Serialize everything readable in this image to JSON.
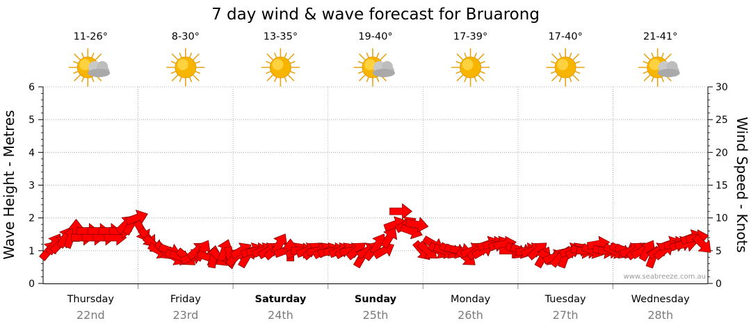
{
  "chart_data": {
    "type": "line",
    "title": "7 day wind & wave forecast for Bruarong",
    "ylabel_left": "Wave Height - Metres",
    "ylabel_right": "Wind Speed - Knots",
    "ylim_left": [
      0,
      6
    ],
    "ylim_right": [
      0,
      30
    ],
    "yticks_left": [
      "0",
      "1",
      "2",
      "3",
      "4",
      "5",
      "6"
    ],
    "yticks_right": [
      "0",
      "5",
      "10",
      "15",
      "20",
      "25",
      "30"
    ],
    "grid": true,
    "days": [
      {
        "name": "Thursday",
        "date": "22nd",
        "temp": "11-26°",
        "icon": "partly-cloudy-icon",
        "bold": false
      },
      {
        "name": "Friday",
        "date": "23rd",
        "temp": "8-30°",
        "icon": "sunny-icon",
        "bold": false
      },
      {
        "name": "Saturday",
        "date": "24th",
        "temp": "13-35°",
        "icon": "sunny-icon",
        "bold": true
      },
      {
        "name": "Sunday",
        "date": "25th",
        "temp": "19-40°",
        "icon": "partly-cloudy-icon",
        "bold": true
      },
      {
        "name": "Monday",
        "date": "26th",
        "temp": "17-39°",
        "icon": "sunny-icon",
        "bold": false
      },
      {
        "name": "Tuesday",
        "date": "27th",
        "temp": "17-40°",
        "icon": "sunny-icon",
        "bold": false
      },
      {
        "name": "Wednesday",
        "date": "28th",
        "temp": "21-41°",
        "icon": "partly-cloudy-icon",
        "bold": false
      }
    ],
    "series": [
      {
        "name": "Wind",
        "color": "#ff0000",
        "points": [
          [
            0,
            5,
            50
          ],
          [
            1,
            6,
            60
          ],
          [
            2,
            6,
            45
          ],
          [
            3,
            7,
            60
          ],
          [
            4,
            7,
            70
          ],
          [
            5,
            8,
            90
          ],
          [
            6,
            7,
            0
          ],
          [
            7,
            8,
            0
          ],
          [
            8,
            7,
            0
          ],
          [
            9,
            8,
            0
          ],
          [
            10,
            7,
            0
          ],
          [
            11,
            8,
            0
          ],
          [
            12,
            7,
            0
          ],
          [
            13,
            8,
            0
          ],
          [
            14,
            9,
            45
          ],
          [
            15,
            9,
            60
          ],
          [
            16,
            10,
            20
          ],
          [
            17,
            8,
            -60
          ],
          [
            18,
            7,
            -50
          ],
          [
            19,
            6,
            -40
          ],
          [
            20,
            5,
            -30
          ],
          [
            21,
            5,
            -45
          ],
          [
            22,
            5,
            -20
          ],
          [
            23,
            4,
            -30
          ],
          [
            24,
            4,
            -20
          ],
          [
            25,
            4,
            -40
          ],
          [
            26,
            4,
            20
          ],
          [
            27,
            5,
            40
          ],
          [
            28,
            5,
            60
          ],
          [
            29,
            4,
            -20
          ],
          [
            30,
            4,
            80
          ],
          [
            31,
            4,
            -45
          ],
          [
            32,
            5,
            70
          ],
          [
            33,
            4,
            -80
          ],
          [
            34,
            4,
            45
          ],
          [
            35,
            5,
            30
          ],
          [
            36,
            4,
            60
          ],
          [
            37,
            5,
            20
          ],
          [
            38,
            5,
            10
          ],
          [
            39,
            5,
            20
          ],
          [
            40,
            5,
            30
          ],
          [
            41,
            5,
            40
          ],
          [
            42,
            6,
            60
          ],
          [
            43,
            5,
            20
          ],
          [
            44,
            5,
            90
          ],
          [
            45,
            5,
            30
          ],
          [
            46,
            5,
            0
          ],
          [
            47,
            5,
            20
          ],
          [
            48,
            5,
            40
          ],
          [
            49,
            5,
            10
          ],
          [
            50,
            5,
            30
          ],
          [
            51,
            5,
            20
          ],
          [
            52,
            5,
            10
          ],
          [
            53,
            5,
            20
          ],
          [
            54,
            5,
            30
          ],
          [
            55,
            5,
            10
          ],
          [
            56,
            5,
            40
          ],
          [
            57,
            4,
            60
          ],
          [
            58,
            5,
            30
          ],
          [
            59,
            5,
            50
          ],
          [
            60,
            6,
            60
          ],
          [
            61,
            5,
            30
          ],
          [
            62,
            7,
            60
          ],
          [
            63,
            9,
            20
          ],
          [
            64,
            11,
            0
          ],
          [
            65,
            9,
            30
          ],
          [
            66,
            8,
            -20
          ],
          [
            67,
            9,
            -10
          ],
          [
            68,
            5,
            -50
          ],
          [
            69,
            5,
            -40
          ],
          [
            70,
            6,
            -30
          ],
          [
            71,
            5,
            -30
          ],
          [
            72,
            5,
            -20
          ],
          [
            73,
            5,
            -30
          ],
          [
            74,
            5,
            -20
          ],
          [
            75,
            5,
            -10
          ],
          [
            76,
            4,
            -40
          ],
          [
            77,
            5,
            20
          ],
          [
            78,
            5,
            40
          ],
          [
            79,
            5,
            30
          ],
          [
            80,
            6,
            20
          ],
          [
            81,
            6,
            10
          ],
          [
            82,
            6,
            20
          ],
          [
            83,
            6,
            10
          ],
          [
            84,
            5,
            0
          ],
          [
            85,
            5,
            -30
          ],
          [
            86,
            5,
            -20
          ],
          [
            87,
            5,
            10
          ],
          [
            88,
            5,
            20
          ],
          [
            89,
            5,
            40
          ],
          [
            90,
            4,
            60
          ],
          [
            91,
            4,
            -30
          ],
          [
            92,
            4,
            20
          ],
          [
            93,
            4,
            50
          ],
          [
            94,
            4,
            70
          ],
          [
            95,
            5,
            20
          ],
          [
            96,
            5,
            30
          ],
          [
            97,
            5,
            -10
          ],
          [
            98,
            5,
            0
          ],
          [
            99,
            5,
            -20
          ],
          [
            100,
            6,
            10
          ],
          [
            101,
            5,
            -10
          ],
          [
            102,
            5,
            0
          ],
          [
            103,
            5,
            -20
          ],
          [
            104,
            5,
            -30
          ],
          [
            105,
            5,
            -20
          ],
          [
            106,
            5,
            20
          ],
          [
            107,
            5,
            40
          ],
          [
            108,
            5,
            30
          ],
          [
            109,
            5,
            60
          ],
          [
            110,
            4,
            70
          ],
          [
            111,
            5,
            30
          ],
          [
            112,
            5,
            40
          ],
          [
            113,
            6,
            20
          ],
          [
            114,
            6,
            10
          ],
          [
            115,
            6,
            20
          ],
          [
            116,
            6,
            10
          ],
          [
            117,
            7,
            20
          ],
          [
            118,
            7,
            10
          ],
          [
            119,
            6,
            -45
          ]
        ]
      }
    ]
  },
  "credit": "www.seabreeze.com.au"
}
